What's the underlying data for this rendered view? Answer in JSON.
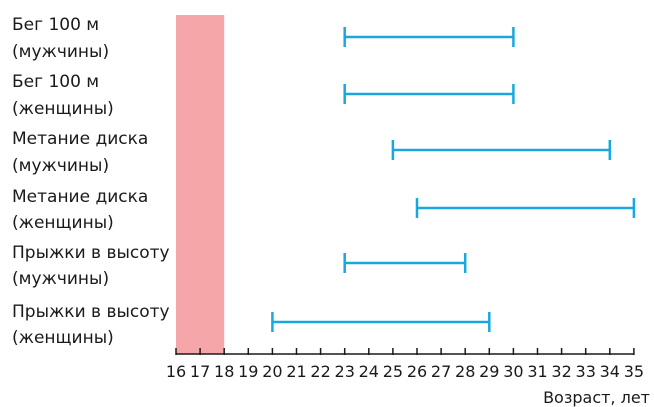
{
  "chart_data": {
    "type": "range",
    "categories": [
      [
        "Бег 100 м",
        "(мужчины)"
      ],
      [
        "Бег 100 м",
        "(женщины)"
      ],
      [
        "Метание диска",
        "(мужчины)"
      ],
      [
        "Метание диска",
        "(женщины)"
      ],
      [
        "Прыжки в высоту",
        "(мужчины)"
      ],
      [
        "Прыжки в высоту",
        "(женщины)"
      ]
    ],
    "ranges": [
      [
        23,
        30
      ],
      [
        23,
        30
      ],
      [
        25,
        34
      ],
      [
        26,
        35
      ],
      [
        23,
        28
      ],
      [
        20,
        29
      ]
    ],
    "highlight_band": [
      16,
      18
    ],
    "xlim": [
      16,
      35
    ],
    "xticks": [
      16,
      17,
      18,
      19,
      20,
      21,
      22,
      23,
      24,
      25,
      26,
      27,
      28,
      29,
      30,
      31,
      32,
      33,
      34,
      35
    ],
    "xlabel": "Возраст, лет",
    "grid": false,
    "colors": {
      "range": "#1aa7e0",
      "band": "#f4a6a8",
      "axis": "#1a1a1a",
      "text": "#1a1a1a"
    }
  }
}
